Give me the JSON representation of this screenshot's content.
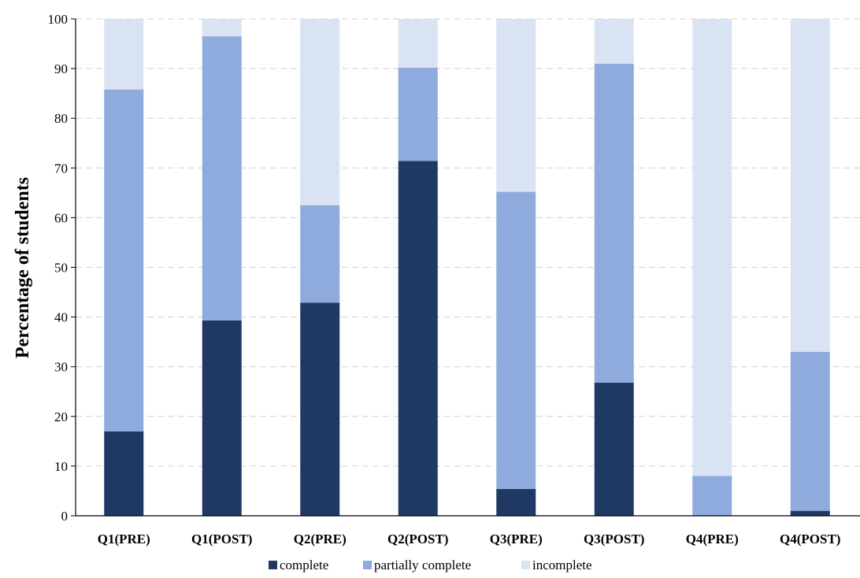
{
  "chart_data": {
    "type": "bar",
    "stacked": true,
    "title": "",
    "xlabel": "",
    "ylabel": "Percentage of students",
    "ylim": [
      0,
      100
    ],
    "yticks": [
      0,
      10,
      20,
      30,
      40,
      50,
      60,
      70,
      80,
      90,
      100
    ],
    "grid": "horizontal dashed",
    "legend_position": "bottom",
    "categories": [
      "Q1(PRE)",
      "Q1(POST)",
      "Q2(PRE)",
      "Q2(POST)",
      "Q3(PRE)",
      "Q3(POST)",
      "Q4(PRE)",
      "Q4(POST)"
    ],
    "series": [
      {
        "name": "complete",
        "color": "#203864",
        "values": [
          17,
          39.3,
          42.9,
          71.4,
          5.4,
          26.8,
          0,
          1
        ]
      },
      {
        "name": "partially complete",
        "color": "#8faadc",
        "values": [
          68.8,
          57.2,
          19.6,
          18.8,
          59.8,
          64.2,
          8,
          32
        ]
      },
      {
        "name": "incomplete",
        "color": "#dae3f3",
        "values": [
          14.2,
          3.5,
          37.5,
          9.8,
          34.8,
          9,
          92,
          67
        ]
      }
    ]
  }
}
